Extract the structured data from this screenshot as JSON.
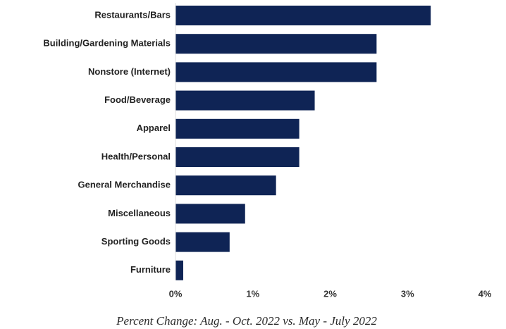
{
  "chart_data": {
    "type": "bar",
    "orientation": "horizontal",
    "categories": [
      "Restaurants/Bars",
      "Building/Gardening Materials",
      "Nonstore (Internet)",
      "Food/Beverage",
      "Apparel",
      "Health/Personal",
      "General Merchandise",
      "Miscellaneous",
      "Sporting Goods",
      "Furniture"
    ],
    "values": [
      3.3,
      2.6,
      2.6,
      1.8,
      1.6,
      1.6,
      1.3,
      0.9,
      0.7,
      0.1
    ],
    "unit": "%",
    "xlim": [
      0,
      4
    ],
    "xticks": [
      {
        "value": 0,
        "label": "0%"
      },
      {
        "value": 1,
        "label": "1%"
      },
      {
        "value": 2,
        "label": "2%"
      },
      {
        "value": 3,
        "label": "3%"
      },
      {
        "value": 4,
        "label": "4%"
      }
    ],
    "xlabel": "Percent Change: Aug. - Oct. 2022 vs. May - July 2022",
    "grid": false,
    "colors": {
      "bar": "#0f2455"
    }
  }
}
